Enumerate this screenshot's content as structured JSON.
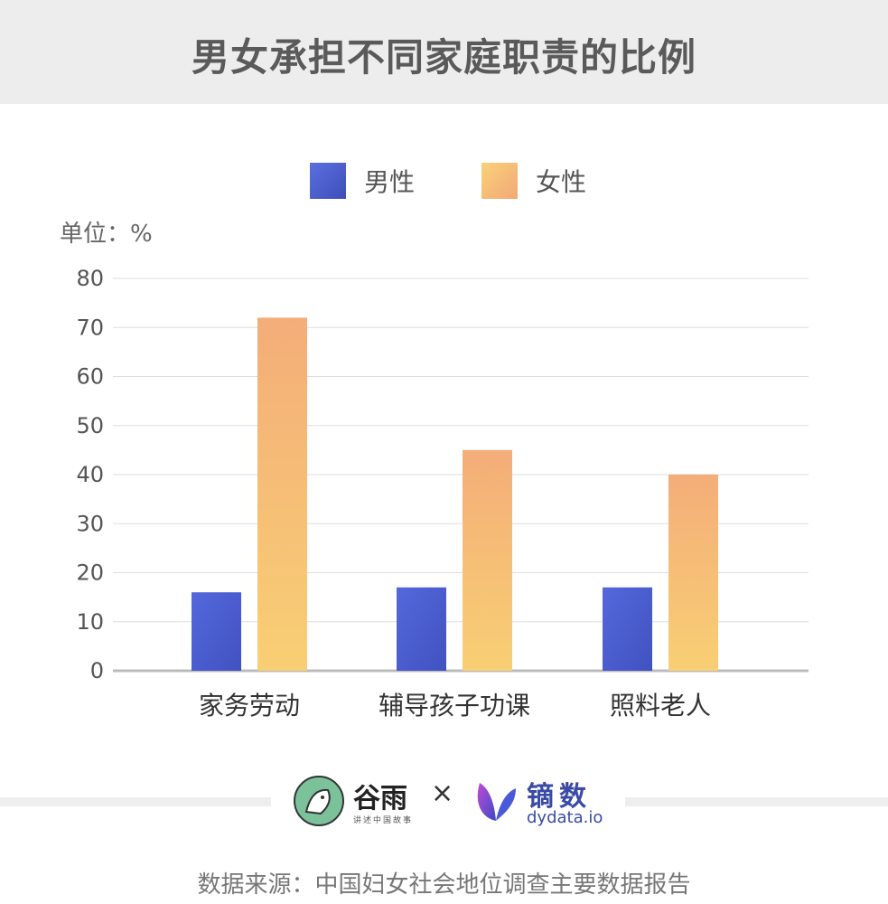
{
  "header": {
    "title": "男女承担不同家庭职责的比例"
  },
  "legend": {
    "male": "男性",
    "female": "女性"
  },
  "unit_label": "单位：%",
  "chart_data": {
    "type": "bar",
    "title": "男女承担不同家庭职责的比例",
    "categories": [
      "家务劳动",
      "辅导孩子功课",
      "照料老人"
    ],
    "series": [
      {
        "name": "男性",
        "values": [
          16,
          17,
          17
        ]
      },
      {
        "name": "女性",
        "values": [
          72,
          45,
          40
        ]
      }
    ],
    "ylabel": "单位：%",
    "ylim": [
      0,
      80
    ],
    "yticks": [
      0,
      10,
      20,
      30,
      40,
      50,
      60,
      70,
      80
    ],
    "grid": true,
    "legend": "top-center",
    "colors": {
      "male": "#4a5fd0",
      "female": "#f5bd78"
    }
  },
  "logos": {
    "guyu": {
      "name": "谷雨",
      "tagline": "讲述中国故事"
    },
    "separator": "×",
    "dydata": {
      "name": "镝数",
      "domain": "dydata.io"
    }
  },
  "source": "数据来源：中国妇女社会地位调查主要数据报告"
}
